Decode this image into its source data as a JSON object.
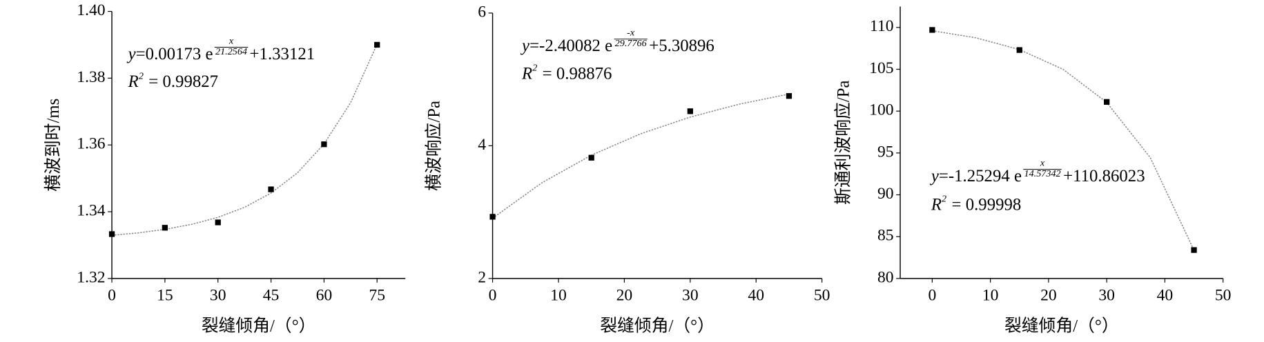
{
  "chart_data": [
    {
      "type": "scatter",
      "x_label": "裂缝倾角/（°）",
      "y_label": "横波到时/ms",
      "x": [
        0,
        15,
        30,
        45,
        60,
        75
      ],
      "y": [
        1.3333,
        1.3352,
        1.3368,
        1.3467,
        1.3602,
        1.39
      ],
      "color": "#000000",
      "fit": {
        "x": [
          0,
          7.5,
          15,
          22.5,
          30,
          37.5,
          45,
          52.5,
          60,
          67.5,
          75
        ],
        "y": [
          1.33294,
          1.33367,
          1.33472,
          1.3362,
          1.33831,
          1.34131,
          1.34558,
          1.35166,
          1.36031,
          1.37263,
          1.39014
        ],
        "color": "#888888"
      },
      "xlim": [
        0,
        83
      ],
      "ylim": [
        1.32,
        1.4
      ],
      "xticks": [
        0,
        15,
        30,
        45,
        60,
        75
      ],
      "yticks": [
        1.32,
        1.34,
        1.36,
        1.38,
        {
          "value": 1.4,
          "label": "1.40"
        }
      ],
      "equation": {
        "variable": "y",
        "coefficient": "=0.00173 e",
        "exponent_numerator": "x",
        "exponent_denominator": "21.2564",
        "constant": "+1.33121"
      },
      "r_squared": {
        "symbol": "R",
        "power": "2",
        "value": " = 0.99827"
      }
    },
    {
      "type": "scatter",
      "x_label": "裂缝倾角/（°）",
      "y_label": "横波响应/Pa",
      "x": [
        0,
        15,
        30,
        45
      ],
      "y": [
        2.93,
        3.82,
        4.52,
        4.75
      ],
      "color": "#000000",
      "fit": {
        "x": [
          0,
          7.5,
          15,
          22.5,
          30,
          37.5,
          45
        ],
        "y": [
          2.908,
          3.443,
          3.858,
          4.181,
          4.432,
          4.628,
          4.779
        ],
        "color": "#888888"
      },
      "xlim": [
        0,
        50
      ],
      "ylim": [
        2,
        6
      ],
      "xticks": [
        0,
        10,
        20,
        30,
        40,
        50
      ],
      "yticks": [
        2,
        4,
        6
      ],
      "equation": {
        "variable": "y",
        "coefficient": "=-2.40082 e",
        "exponent_numerator": "-x",
        "exponent_denominator": "29.7766",
        "constant": "+5.30896"
      },
      "r_squared": {
        "symbol": "R",
        "power": "2",
        "value": " = 0.98876"
      }
    },
    {
      "type": "scatter",
      "x_label": "裂缝倾角/（°）",
      "y_label": "斯通利波响应/Pa",
      "x": [
        0,
        15,
        30,
        45
      ],
      "y": [
        109.7,
        107.3,
        101.1,
        83.4
      ],
      "color": "#000000",
      "fit": {
        "x": [
          0,
          7.5,
          15,
          22.5,
          30,
          37.5,
          45
        ],
        "y": [
          109.607,
          108.764,
          107.353,
          104.992,
          101.043,
          94.43,
          83.38
        ],
        "color": "#888888"
      },
      "xlim": [
        -5.5,
        50
      ],
      "ylim": [
        80,
        112.5
      ],
      "xticks": [
        0,
        10,
        20,
        30,
        40,
        50
      ],
      "yticks": [
        80,
        85,
        90,
        95,
        100,
        105,
        110
      ],
      "equation": {
        "variable": "y",
        "coefficient": "=-1.25294 e",
        "exponent_numerator": "x",
        "exponent_denominator": "14.57342",
        "constant": "+110.86023"
      },
      "r_squared": {
        "symbol": "R",
        "power": "2",
        "value": " = 0.99998"
      }
    }
  ]
}
